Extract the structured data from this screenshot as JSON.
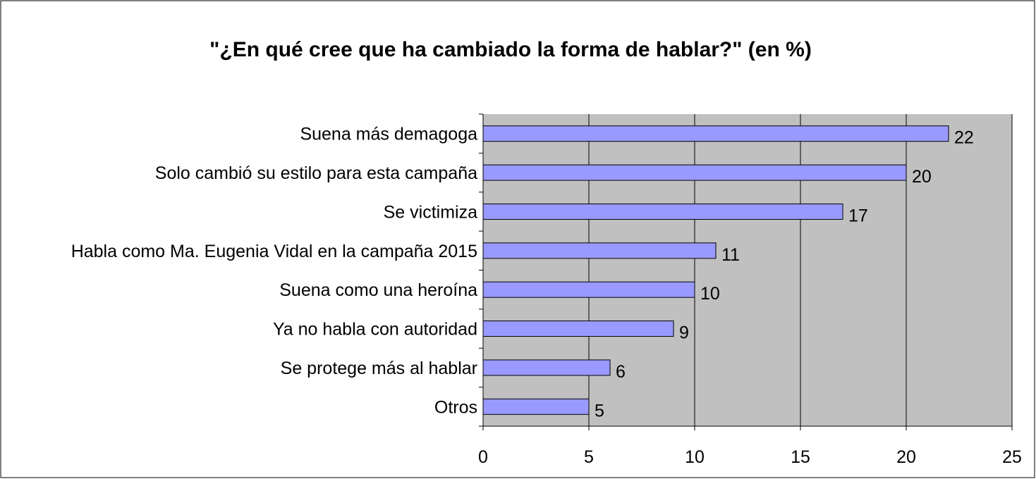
{
  "chart_data": {
    "type": "bar",
    "orientation": "horizontal",
    "title": "\"¿En qué cree que ha cambiado la forma de hablar?\" (en %)",
    "categories": [
      "Suena más demagoga",
      "Solo cambió su estilo para esta campaña",
      "Se victimiza",
      "Habla como Ma. Eugenia Vidal en la campaña 2015",
      "Suena como una heroína",
      "Ya no habla con autoridad",
      "Se protege más al hablar",
      "Otros"
    ],
    "values": [
      22,
      20,
      17,
      11,
      10,
      9,
      6,
      5
    ],
    "color": "#9999ff",
    "xlim": [
      0,
      25
    ],
    "xticks": [
      0,
      5,
      10,
      15,
      20,
      25
    ],
    "grid": true
  }
}
